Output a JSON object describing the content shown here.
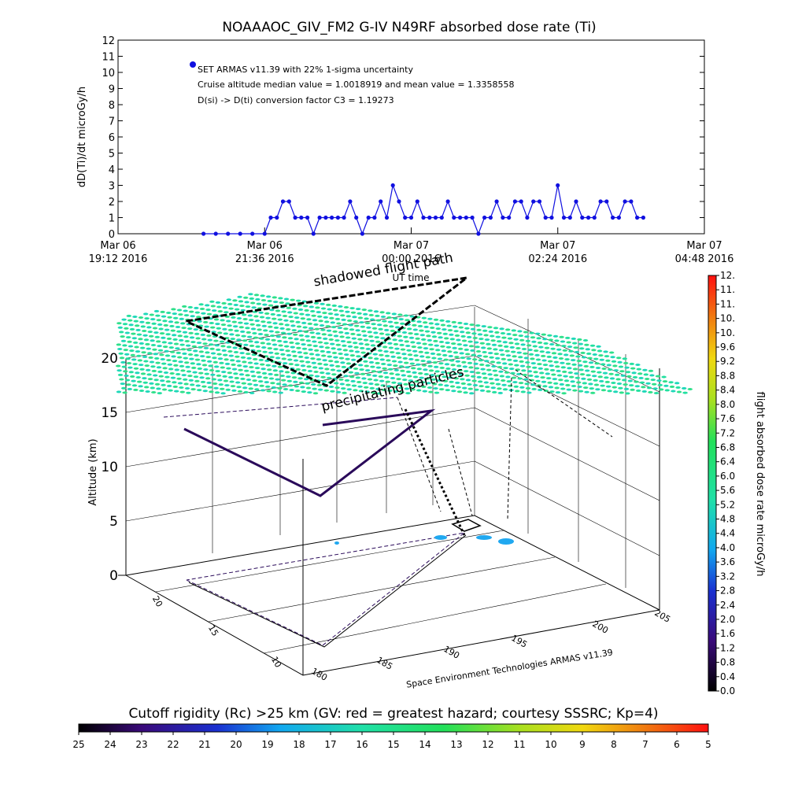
{
  "title": "NOAAAOC_GIV_FM2 G-IV    N49RF  absorbed dose rate (Ti)",
  "chart_data": [
    {
      "type": "line",
      "ylabel": "dD(Ti)/dt microGy/h",
      "xlabel": "UT time",
      "ylim": [
        0,
        12
      ],
      "yticks": [
        "0",
        "1",
        "2",
        "3",
        "4",
        "5",
        "6",
        "7",
        "8",
        "9",
        "10",
        "11",
        "12"
      ],
      "xticks": [
        {
          "l1": "Mar 06",
          "l2": "19:12 2016",
          "h": 19.2
        },
        {
          "l1": "Mar 06",
          "l2": "21:36 2016",
          "h": 21.6
        },
        {
          "l1": "Mar 07",
          "l2": "00:00 2016",
          "h": 24.0
        },
        {
          "l1": "Mar 07",
          "l2": "02:24 2016",
          "h": 26.4
        },
        {
          "l1": "Mar 07",
          "l2": "04:48 2016",
          "h": 28.8
        }
      ],
      "xlim_hours": [
        19.2,
        28.8
      ],
      "legend": [
        "SET ARMAS v11.39 with 22% 1-sigma uncertainty",
        "Cruise altitude median value = 1.0018919 and mean value = 1.3358558",
        "D(si) -> D(ti) conversion factor C3 = 1.19273"
      ],
      "marker_color": "#1010e0",
      "series": [
        {
          "x": [
            20.6,
            20.8,
            21.0,
            21.2,
            21.4,
            21.6,
            21.7,
            21.8,
            21.9,
            22.0,
            22.1,
            22.2,
            22.3,
            22.4,
            22.5,
            22.6,
            22.7,
            22.8,
            22.9,
            23.0,
            23.1,
            23.2,
            23.3,
            23.4,
            23.5,
            23.6,
            23.7,
            23.8,
            23.9,
            24.0,
            24.1,
            24.2,
            24.3,
            24.4,
            24.5,
            24.6,
            24.7,
            24.8,
            24.9,
            25.0,
            25.1,
            25.2,
            25.3,
            25.4,
            25.5,
            25.6,
            25.7,
            25.8,
            25.9,
            26.0,
            26.1,
            26.2,
            26.3,
            26.4,
            26.5,
            26.6,
            26.7,
            26.8,
            26.9,
            27.0,
            27.1,
            27.2,
            27.3,
            27.4,
            27.5,
            27.6,
            27.7,
            27.8
          ],
          "values": [
            0,
            0,
            0,
            0,
            0,
            0,
            1,
            1,
            2,
            2,
            1,
            1,
            1,
            0,
            1,
            1,
            1,
            1,
            1,
            2,
            1,
            0,
            1,
            1,
            2,
            1,
            3,
            2,
            1,
            1,
            2,
            1,
            1,
            1,
            1,
            2,
            1,
            1,
            1,
            1,
            0,
            1,
            1,
            2,
            1,
            1,
            2,
            2,
            1,
            2,
            2,
            1,
            1,
            3,
            1,
            1,
            2,
            1,
            1,
            1,
            2,
            2,
            1,
            1,
            2,
            2,
            1,
            1
          ]
        }
      ]
    },
    {
      "type": "scatter",
      "xlabel": "",
      "ylabel": "Altitude (km)",
      "zticks": [
        "0",
        "5",
        "10",
        "15",
        "20"
      ],
      "lat_ticks": [
        "10",
        "15",
        "20"
      ],
      "lon_ticks": [
        "180",
        "185",
        "190",
        "195",
        "200",
        "205"
      ],
      "colorbar_label": "flight absorbed dose rate microGy/h",
      "colorbar_ticks": [
        "0.0",
        "0.4",
        "0.8",
        "1.2",
        "1.6",
        "2.0",
        "2.4",
        "2.8",
        "3.2",
        "3.6",
        "4.0",
        "4.4",
        "4.8",
        "5.2",
        "5.6",
        "6.0",
        "6.4",
        "6.8",
        "7.2",
        "7.6",
        "8.0",
        "8.4",
        "8.8",
        "9.2",
        "9.6",
        "10.",
        "10.",
        "11.",
        "11.",
        "12."
      ],
      "annotations": [
        "shadowed flight path",
        "precipitating particles"
      ],
      "credit": "Space Environment Technologies ARMAS v11.39"
    }
  ],
  "cutoff": {
    "label": "Cutoff rigidity (Rc) >25 km (GV: red = greatest hazard; courtesy SSSRC; Kp=4)",
    "ticks": [
      "25",
      "24",
      "23",
      "22",
      "21",
      "20",
      "19",
      "18",
      "17",
      "16",
      "15",
      "14",
      "13",
      "12",
      "11",
      "10",
      "9",
      "8",
      "7",
      "6",
      "5"
    ]
  }
}
